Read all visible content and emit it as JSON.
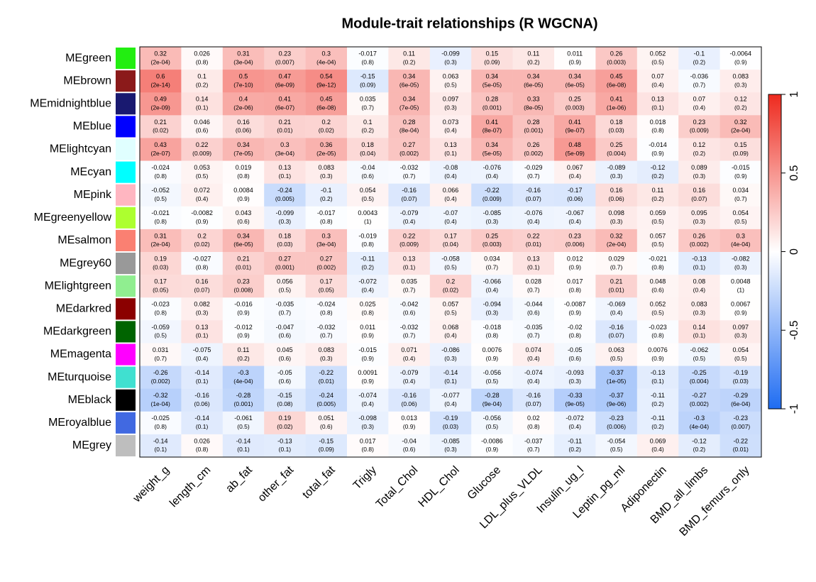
{
  "chart_data": {
    "type": "heatmap",
    "title": "Module-trait relationships (R WGCNA)",
    "rows": [
      "MEgreen",
      "MEbrown",
      "MEmidnightblue",
      "MEblue",
      "MElightcyan",
      "MEcyan",
      "MEpink",
      "MEgreenyellow",
      "MEsalmon",
      "MEgrey60",
      "MElightgreen",
      "MEdarkred",
      "MEdarkgreen",
      "MEmagenta",
      "MEturquoise",
      "MEblack",
      "MEroyalblue",
      "MEgrey"
    ],
    "row_colors": [
      "#22ee11",
      "#8b1a1a",
      "#191970",
      "#0000ff",
      "#e0ffff",
      "#00ffff",
      "#ffb6c1",
      "#adff2f",
      "#fa8072",
      "#999999",
      "#90ee90",
      "#8b0000",
      "#006400",
      "#ff00ff",
      "#40e0d0",
      "#000000",
      "#4169e1",
      "#bebebe"
    ],
    "columns": [
      "weight_g",
      "length_cm",
      "ab_fat",
      "other_fat",
      "total_fat",
      "Trigly",
      "Total_Chol",
      "HDL_Chol",
      "Glucose",
      "LDL_plus_VLDL",
      "Insulin_ug_l",
      "Leptin_pg_ml",
      "Adiponectin",
      "BMD_all_limbs",
      "BMD_femurs_only"
    ],
    "values": [
      [
        0.32,
        0.026,
        0.31,
        0.23,
        0.3,
        -0.017,
        0.11,
        -0.099,
        0.15,
        0.11,
        0.011,
        0.26,
        0.052,
        -0.1,
        -0.0064
      ],
      [
        0.6,
        0.1,
        0.5,
        0.47,
        0.54,
        -0.15,
        0.34,
        0.063,
        0.34,
        0.34,
        0.34,
        0.45,
        0.07,
        -0.036,
        0.083
      ],
      [
        0.49,
        0.14,
        0.4,
        0.41,
        0.45,
        0.035,
        0.34,
        0.097,
        0.28,
        0.33,
        0.25,
        0.41,
        0.13,
        0.07,
        0.12
      ],
      [
        0.21,
        0.046,
        0.16,
        0.21,
        0.2,
        0.1,
        0.28,
        0.073,
        0.41,
        0.28,
        0.41,
        0.18,
        0.018,
        0.23,
        0.32
      ],
      [
        0.43,
        0.22,
        0.34,
        0.3,
        0.36,
        0.18,
        0.27,
        0.13,
        0.34,
        0.26,
        0.48,
        0.25,
        -0.014,
        0.12,
        0.15
      ],
      [
        -0.024,
        0.053,
        0.019,
        0.13,
        0.083,
        -0.04,
        -0.032,
        -0.08,
        -0.076,
        -0.029,
        0.067,
        -0.089,
        -0.12,
        0.089,
        -0.015
      ],
      [
        -0.052,
        0.072,
        0.0084,
        -0.24,
        -0.1,
        0.054,
        -0.16,
        0.066,
        -0.22,
        -0.16,
        -0.17,
        0.16,
        0.11,
        0.16,
        0.034
      ],
      [
        -0.021,
        -0.0082,
        0.043,
        -0.099,
        -0.017,
        0.0043,
        -0.079,
        -0.07,
        -0.085,
        -0.076,
        -0.067,
        0.098,
        0.059,
        0.095,
        0.054
      ],
      [
        0.31,
        0.2,
        0.34,
        0.18,
        0.3,
        -0.019,
        0.22,
        0.17,
        0.25,
        0.22,
        0.23,
        0.32,
        0.057,
        0.26,
        0.3
      ],
      [
        0.19,
        -0.027,
        0.21,
        0.27,
        0.27,
        -0.11,
        0.13,
        -0.058,
        0.034,
        0.13,
        0.012,
        0.029,
        -0.021,
        -0.13,
        -0.082
      ],
      [
        0.17,
        0.16,
        0.23,
        0.056,
        0.17,
        -0.072,
        0.035,
        0.2,
        -0.066,
        0.028,
        0.017,
        0.21,
        0.048,
        0.08,
        0.0048
      ],
      [
        -0.023,
        0.082,
        -0.016,
        -0.035,
        -0.024,
        0.025,
        -0.042,
        0.057,
        -0.094,
        -0.044,
        -0.0087,
        -0.069,
        0.052,
        0.083,
        0.0067
      ],
      [
        -0.059,
        0.13,
        -0.012,
        -0.047,
        -0.032,
        0.011,
        -0.032,
        0.068,
        -0.018,
        -0.035,
        -0.02,
        -0.16,
        -0.023,
        0.14,
        0.097
      ],
      [
        0.031,
        -0.075,
        0.11,
        0.045,
        0.083,
        -0.015,
        0.071,
        -0.086,
        0.0076,
        0.074,
        -0.05,
        0.063,
        0.0076,
        -0.062,
        0.054
      ],
      [
        -0.26,
        -0.14,
        -0.3,
        -0.05,
        -0.22,
        0.0091,
        -0.079,
        -0.14,
        -0.056,
        -0.074,
        -0.093,
        -0.37,
        -0.13,
        -0.25,
        -0.19
      ],
      [
        -0.32,
        -0.16,
        -0.28,
        -0.15,
        -0.24,
        -0.074,
        -0.16,
        -0.077,
        -0.28,
        -0.16,
        -0.33,
        -0.37,
        -0.11,
        -0.27,
        -0.29
      ],
      [
        -0.025,
        -0.14,
        -0.061,
        0.19,
        0.051,
        -0.098,
        0.013,
        -0.19,
        -0.056,
        0.02,
        -0.072,
        -0.23,
        -0.11,
        -0.3,
        -0.23
      ],
      [
        -0.14,
        0.026,
        -0.14,
        -0.13,
        -0.15,
        0.017,
        -0.04,
        -0.085,
        -0.0086,
        -0.037,
        -0.11,
        -0.054,
        0.069,
        -0.12,
        -0.22
      ]
    ],
    "pvalue_labels": [
      [
        "(2e-04)",
        "(0.8)",
        "(3e-04)",
        "(0.007)",
        "(4e-04)",
        "(0.8)",
        "(0.2)",
        "(0.3)",
        "(0.09)",
        "(0.2)",
        "(0.9)",
        "(0.003)",
        "(0.5)",
        "(0.2)",
        "(0.9)"
      ],
      [
        "(2e-14)",
        "(0.2)",
        "(7e-10)",
        "(6e-09)",
        "(9e-12)",
        "(0.09)",
        "(6e-05)",
        "(0.5)",
        "(5e-05)",
        "(6e-05)",
        "(6e-05)",
        "(6e-08)",
        "(0.4)",
        "(0.7)",
        "(0.3)"
      ],
      [
        "(2e-09)",
        "(0.1)",
        "(2e-06)",
        "(6e-07)",
        "(6e-08)",
        "(0.7)",
        "(7e-05)",
        "(0.3)",
        "(0.001)",
        "(8e-05)",
        "(0.003)",
        "(1e-06)",
        "(0.1)",
        "(0.4)",
        "(0.2)"
      ],
      [
        "(0.02)",
        "(0.6)",
        "(0.06)",
        "(0.01)",
        "(0.02)",
        "(0.2)",
        "(8e-04)",
        "(0.4)",
        "(8e-07)",
        "(0.001)",
        "(9e-07)",
        "(0.03)",
        "(0.8)",
        "(0.009)",
        "(2e-04)"
      ],
      [
        "(2e-07)",
        "(0.009)",
        "(7e-05)",
        "(3e-04)",
        "(2e-05)",
        "(0.04)",
        "(0.002)",
        "(0.1)",
        "(5e-05)",
        "(0.002)",
        "(5e-09)",
        "(0.004)",
        "(0.9)",
        "(0.2)",
        "(0.09)"
      ],
      [
        "(0.8)",
        "(0.5)",
        "(0.8)",
        "(0.1)",
        "(0.3)",
        "(0.6)",
        "(0.7)",
        "(0.4)",
        "(0.4)",
        "(0.7)",
        "(0.4)",
        "(0.3)",
        "(0.2)",
        "(0.3)",
        "(0.9)"
      ],
      [
        "(0.5)",
        "(0.4)",
        "(0.9)",
        "(0.005)",
        "(0.2)",
        "(0.5)",
        "(0.07)",
        "(0.4)",
        "(0.009)",
        "(0.07)",
        "(0.06)",
        "(0.06)",
        "(0.2)",
        "(0.07)",
        "(0.7)"
      ],
      [
        "(0.8)",
        "(0.9)",
        "(0.6)",
        "(0.3)",
        "(0.8)",
        "(1)",
        "(0.4)",
        "(0.4)",
        "(0.3)",
        "(0.4)",
        "(0.4)",
        "(0.3)",
        "(0.5)",
        "(0.3)",
        "(0.5)"
      ],
      [
        "(2e-04)",
        "(0.02)",
        "(6e-05)",
        "(0.03)",
        "(3e-04)",
        "(0.8)",
        "(0.009)",
        "(0.04)",
        "(0.003)",
        "(0.01)",
        "(0.006)",
        "(2e-04)",
        "(0.5)",
        "(0.002)",
        "(4e-04)"
      ],
      [
        "(0.03)",
        "(0.8)",
        "(0.01)",
        "(0.001)",
        "(0.002)",
        "(0.2)",
        "(0.1)",
        "(0.5)",
        "(0.7)",
        "(0.1)",
        "(0.9)",
        "(0.7)",
        "(0.8)",
        "(0.1)",
        "(0.3)"
      ],
      [
        "(0.05)",
        "(0.07)",
        "(0.008)",
        "(0.5)",
        "(0.05)",
        "(0.4)",
        "(0.7)",
        "(0.02)",
        "(0.4)",
        "(0.7)",
        "(0.8)",
        "(0.01)",
        "(0.6)",
        "(0.4)",
        "(1)"
      ],
      [
        "(0.8)",
        "(0.3)",
        "(0.9)",
        "(0.7)",
        "(0.8)",
        "(0.8)",
        "(0.6)",
        "(0.5)",
        "(0.3)",
        "(0.6)",
        "(0.9)",
        "(0.4)",
        "(0.5)",
        "(0.3)",
        "(0.9)"
      ],
      [
        "(0.5)",
        "(0.1)",
        "(0.9)",
        "(0.6)",
        "(0.7)",
        "(0.9)",
        "(0.7)",
        "(0.4)",
        "(0.8)",
        "(0.7)",
        "(0.8)",
        "(0.07)",
        "(0.8)",
        "(0.1)",
        "(0.3)"
      ],
      [
        "(0.7)",
        "(0.4)",
        "(0.2)",
        "(0.6)",
        "(0.3)",
        "(0.9)",
        "(0.4)",
        "(0.3)",
        "(0.9)",
        "(0.4)",
        "(0.6)",
        "(0.5)",
        "(0.9)",
        "(0.5)",
        "(0.5)"
      ],
      [
        "(0.002)",
        "(0.1)",
        "(4e-04)",
        "(0.6)",
        "(0.01)",
        "(0.9)",
        "(0.4)",
        "(0.1)",
        "(0.5)",
        "(0.4)",
        "(0.3)",
        "(1e-05)",
        "(0.1)",
        "(0.004)",
        "(0.03)"
      ],
      [
        "(1e-04)",
        "(0.06)",
        "(0.001)",
        "(0.08)",
        "(0.005)",
        "(0.4)",
        "(0.06)",
        "(0.4)",
        "(9e-04)",
        "(0.07)",
        "(9e-05)",
        "(9e-06)",
        "(0.2)",
        "(0.002)",
        "(6e-04)"
      ],
      [
        "(0.8)",
        "(0.1)",
        "(0.5)",
        "(0.02)",
        "(0.6)",
        "(0.3)",
        "(0.9)",
        "(0.03)",
        "(0.5)",
        "(0.8)",
        "(0.4)",
        "(0.006)",
        "(0.2)",
        "(4e-04)",
        "(0.007)"
      ],
      [
        "(0.1)",
        "(0.8)",
        "(0.1)",
        "(0.1)",
        "(0.09)",
        "(0.8)",
        "(0.6)",
        "(0.3)",
        "(0.9)",
        "(0.7)",
        "(0.2)",
        "(0.5)",
        "(0.4)",
        "(0.2)",
        "(0.01)"
      ]
    ],
    "colors": {
      "low": "#1f6cf2",
      "mid": "#ffffff",
      "high": "#ee2a1e"
    },
    "clim": [
      -1,
      1
    ],
    "cticks": [
      -1,
      -0.5,
      0,
      0.5,
      1
    ]
  }
}
